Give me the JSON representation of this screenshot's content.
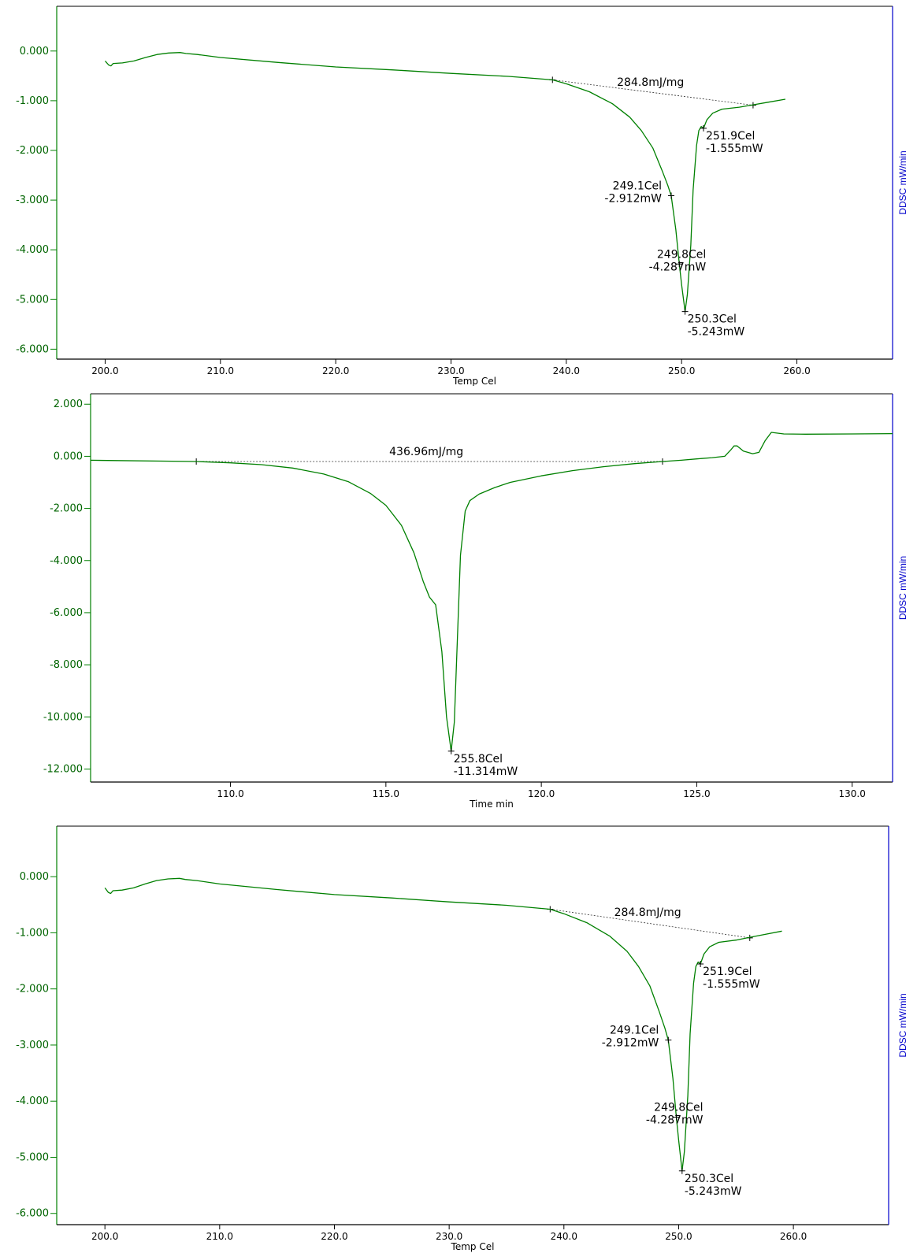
{
  "chart_data": [
    {
      "type": "line",
      "xlabel": "Temp Cel",
      "ylabel_right": "DDSC mW/min",
      "xlim": [
        195.8,
        268.3
      ],
      "ylim": [
        -6.2,
        0.9
      ],
      "xticks": [
        200,
        210,
        220,
        230,
        240,
        250,
        260
      ],
      "xtick_labels": [
        "200.0",
        "210.0",
        "220.0",
        "230.0",
        "240.0",
        "250.0",
        "260.0"
      ],
      "yticks": [
        0,
        -1,
        -2,
        -3,
        -4,
        -5,
        -6
      ],
      "ytick_labels": [
        "0.000",
        "-1.000",
        "-2.000",
        "-3.000",
        "-4.000",
        "-5.000",
        "-6.000"
      ],
      "series": [
        {
          "color": "#008000",
          "x": [
            200.0,
            200.3,
            200.5,
            200.7,
            201.5,
            202.5,
            203.5,
            204.5,
            205.5,
            206.5,
            207.0,
            208.0,
            210.0,
            215.0,
            220.0,
            225.0,
            230.0,
            235.0,
            238.8,
            240.0,
            242.0,
            244.0,
            245.5,
            246.5,
            247.5,
            248.3,
            248.8,
            249.1,
            249.5,
            249.8,
            250.0,
            250.3,
            250.5,
            250.8,
            251.0,
            251.3,
            251.5,
            251.7,
            251.9,
            252.2,
            252.7,
            253.5,
            255.0,
            256.0,
            257.5,
            259.0
          ],
          "y": [
            -0.2,
            -0.28,
            -0.3,
            -0.25,
            -0.24,
            -0.2,
            -0.13,
            -0.07,
            -0.04,
            -0.03,
            -0.05,
            -0.07,
            -0.13,
            -0.23,
            -0.32,
            -0.38,
            -0.45,
            -0.51,
            -0.58,
            -0.66,
            -0.82,
            -1.06,
            -1.33,
            -1.6,
            -1.95,
            -2.4,
            -2.7,
            -2.912,
            -3.6,
            -4.287,
            -4.7,
            -5.243,
            -4.9,
            -3.9,
            -2.8,
            -1.9,
            -1.6,
            -1.52,
            -1.555,
            -1.38,
            -1.25,
            -1.17,
            -1.13,
            -1.09,
            -1.03,
            -0.97
          ]
        }
      ],
      "baseline": {
        "x": [
          238.8,
          256.2
        ],
        "y": [
          -0.58,
          -1.09
        ]
      },
      "annotations": [
        {
          "x": 247.3,
          "y": -0.7,
          "text": "284.8mJ/mg"
        },
        {
          "x": 251.9,
          "y": -1.555,
          "lines": [
            "251.9Cel",
            "-1.555mW"
          ]
        },
        {
          "x": 249.1,
          "y": -2.912,
          "lines": [
            "249.1Cel",
            "-2.912mW"
          ]
        },
        {
          "x": 249.8,
          "y": -4.287,
          "lines": [
            "249.8Cel",
            "-4.287mW"
          ]
        },
        {
          "x": 250.3,
          "y": -5.243,
          "lines": [
            "250.3Cel",
            "-5.243mW"
          ]
        }
      ]
    },
    {
      "type": "line",
      "xlabel": "Time min",
      "ylabel_right": "DDSC mW/min",
      "xlim": [
        105.5,
        131.3
      ],
      "ylim": [
        -12.5,
        2.4
      ],
      "xticks": [
        110,
        115,
        120,
        125,
        130
      ],
      "xtick_labels": [
        "110.0",
        "115.0",
        "120.0",
        "125.0",
        "130.0"
      ],
      "yticks": [
        2,
        0,
        -2,
        -4,
        -6,
        -8,
        -10,
        -12
      ],
      "ytick_labels": [
        "2.000",
        "0.000",
        "-2.000",
        "-4.000",
        "-6.000",
        "-8.000",
        "-10.000",
        "-12.000"
      ],
      "series": [
        {
          "color": "#008000",
          "x": [
            105.5,
            108.9,
            110.0,
            111.0,
            112.0,
            113.0,
            113.8,
            114.5,
            115.0,
            115.5,
            115.9,
            116.2,
            116.4,
            116.6,
            116.8,
            116.95,
            117.1,
            117.2,
            117.3,
            117.4,
            117.55,
            117.7,
            118.0,
            118.5,
            119.0,
            120.0,
            121.0,
            122.0,
            123.0,
            123.9,
            124.5,
            125.0,
            125.5,
            125.9,
            126.1,
            126.2,
            126.3,
            126.5,
            126.8,
            127.0,
            127.2,
            127.4,
            127.8,
            128.5,
            130.0,
            131.3
          ],
          "y": [
            -0.15,
            -0.2,
            -0.25,
            -0.32,
            -0.45,
            -0.68,
            -0.98,
            -1.42,
            -1.88,
            -2.65,
            -3.7,
            -4.8,
            -5.4,
            -5.7,
            -7.5,
            -10.0,
            -11.314,
            -10.2,
            -7.0,
            -3.8,
            -2.1,
            -1.7,
            -1.45,
            -1.2,
            -1.0,
            -0.75,
            -0.55,
            -0.4,
            -0.28,
            -0.2,
            -0.15,
            -0.1,
            -0.05,
            0.0,
            0.25,
            0.4,
            0.4,
            0.2,
            0.1,
            0.15,
            0.6,
            0.92,
            0.86,
            0.85,
            0.86,
            0.87
          ]
        }
      ],
      "baseline": {
        "x": [
          108.9,
          123.9
        ],
        "y": [
          -0.2,
          -0.2
        ]
      },
      "annotations": [
        {
          "x": 116.3,
          "y": 0.05,
          "text": "436.96mJ/mg"
        },
        {
          "x": 117.1,
          "y": -11.314,
          "lines": [
            "255.8Cel",
            "-11.314mW"
          ]
        }
      ]
    },
    {
      "type": "line",
      "xlabel": "Temp Cel",
      "ylabel_right": "DDSC mW/min",
      "xlim": [
        195.8,
        268.3
      ],
      "ylim": [
        -6.2,
        0.9
      ],
      "xticks": [
        200,
        210,
        220,
        230,
        240,
        250,
        260
      ],
      "xtick_labels": [
        "200.0",
        "210.0",
        "220.0",
        "230.0",
        "240.0",
        "250.0",
        "260.0"
      ],
      "yticks": [
        0,
        -1,
        -2,
        -3,
        -4,
        -5,
        -6
      ],
      "ytick_labels": [
        "0.000",
        "-1.000",
        "-2.000",
        "-3.000",
        "-4.000",
        "-5.000",
        "-6.000"
      ],
      "series": [
        {
          "color": "#008000",
          "x": [
            200.0,
            200.3,
            200.5,
            200.7,
            201.5,
            202.5,
            203.5,
            204.5,
            205.5,
            206.5,
            207.0,
            208.0,
            210.0,
            215.0,
            220.0,
            225.0,
            230.0,
            235.0,
            238.8,
            240.0,
            242.0,
            244.0,
            245.5,
            246.5,
            247.5,
            248.3,
            248.8,
            249.1,
            249.5,
            249.8,
            250.0,
            250.3,
            250.5,
            250.8,
            251.0,
            251.3,
            251.5,
            251.7,
            251.9,
            252.2,
            252.7,
            253.5,
            255.0,
            256.0,
            257.5,
            259.0
          ],
          "y": [
            -0.2,
            -0.28,
            -0.3,
            -0.25,
            -0.24,
            -0.2,
            -0.13,
            -0.07,
            -0.04,
            -0.03,
            -0.05,
            -0.07,
            -0.13,
            -0.23,
            -0.32,
            -0.38,
            -0.45,
            -0.51,
            -0.58,
            -0.66,
            -0.82,
            -1.06,
            -1.33,
            -1.6,
            -1.95,
            -2.4,
            -2.7,
            -2.912,
            -3.6,
            -4.287,
            -4.7,
            -5.243,
            -4.9,
            -3.9,
            -2.8,
            -1.9,
            -1.6,
            -1.52,
            -1.555,
            -1.38,
            -1.25,
            -1.17,
            -1.13,
            -1.09,
            -1.03,
            -0.97
          ]
        }
      ],
      "baseline": {
        "x": [
          238.8,
          256.2
        ],
        "y": [
          -0.58,
          -1.09
        ]
      },
      "annotations": [
        {
          "x": 247.3,
          "y": -0.7,
          "text": "284.8mJ/mg"
        },
        {
          "x": 251.9,
          "y": -1.555,
          "lines": [
            "251.9Cel",
            "-1.555mW"
          ]
        },
        {
          "x": 249.1,
          "y": -2.912,
          "lines": [
            "249.1Cel",
            "-2.912mW"
          ]
        },
        {
          "x": 249.8,
          "y": -4.287,
          "lines": [
            "249.8Cel",
            "-4.287mW"
          ]
        },
        {
          "x": 250.3,
          "y": -5.243,
          "lines": [
            "250.3Cel",
            "-5.243mW"
          ]
        }
      ]
    }
  ]
}
